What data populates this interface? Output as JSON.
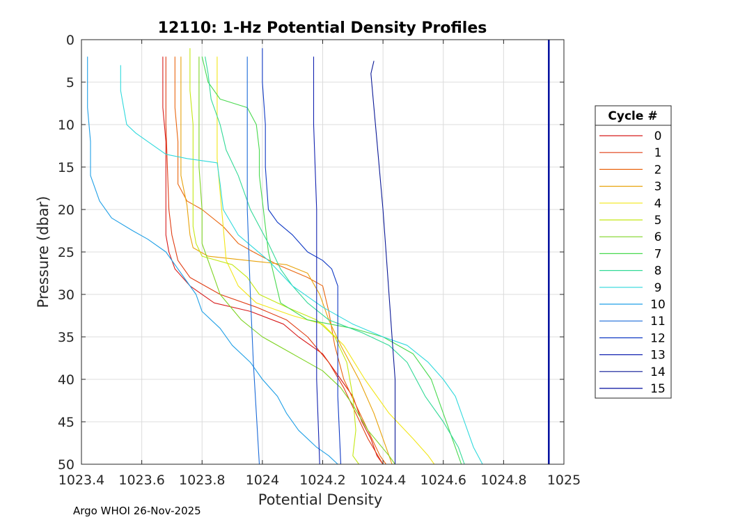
{
  "footer_text": "Argo WHOI 26-Nov-2025",
  "chart_data": {
    "type": "line",
    "title": "12110: 1-Hz Potential Density Profiles",
    "xlabel": "Potential Density",
    "ylabel": "Pressure (dbar)",
    "xlim": [
      1023.4,
      1025
    ],
    "ylim": [
      0,
      50
    ],
    "y_reversed": true,
    "grid": true,
    "xticks": [
      1023.4,
      1023.6,
      1023.8,
      1024,
      1024.2,
      1024.4,
      1024.6,
      1024.8,
      1025
    ],
    "xtick_labels": [
      "1023.4",
      "1023.6",
      "1023.8",
      "1024",
      "1024.2",
      "1024.4",
      "1024.6",
      "1024.8",
      "1025"
    ],
    "yticks": [
      0,
      5,
      10,
      15,
      20,
      25,
      30,
      35,
      40,
      45,
      50
    ],
    "ytick_labels": [
      "0",
      "5",
      "10",
      "15",
      "20",
      "25",
      "30",
      "35",
      "40",
      "45",
      "50"
    ],
    "legend": {
      "title": "Cycle #",
      "position": "right-outside"
    },
    "series": [
      {
        "name": "0",
        "color": "#d71a1a",
        "points": [
          [
            1023.67,
            2
          ],
          [
            1023.67,
            8
          ],
          [
            1023.68,
            12
          ],
          [
            1023.68,
            20
          ],
          [
            1023.68,
            23
          ],
          [
            1023.69,
            25
          ],
          [
            1023.71,
            27
          ],
          [
            1023.76,
            29
          ],
          [
            1023.84,
            31
          ],
          [
            1023.96,
            32
          ],
          [
            1024.07,
            33.5
          ],
          [
            1024.12,
            35
          ],
          [
            1024.2,
            37
          ],
          [
            1024.26,
            40
          ],
          [
            1024.3,
            42
          ],
          [
            1024.33,
            45
          ],
          [
            1024.36,
            47
          ],
          [
            1024.38,
            49
          ],
          [
            1024.4,
            50
          ]
        ]
      },
      {
        "name": "1",
        "color": "#e03c12",
        "points": [
          [
            1023.68,
            2
          ],
          [
            1023.68,
            10
          ],
          [
            1023.69,
            20
          ],
          [
            1023.7,
            23
          ],
          [
            1023.72,
            26
          ],
          [
            1023.76,
            28
          ],
          [
            1023.86,
            30
          ],
          [
            1023.98,
            31.5
          ],
          [
            1024.08,
            33
          ],
          [
            1024.15,
            35
          ],
          [
            1024.22,
            38
          ],
          [
            1024.27,
            41
          ],
          [
            1024.31,
            44
          ],
          [
            1024.35,
            47
          ],
          [
            1024.4,
            50
          ]
        ]
      },
      {
        "name": "2",
        "color": "#e9650e",
        "points": [
          [
            1023.71,
            2
          ],
          [
            1023.71,
            8
          ],
          [
            1023.72,
            12
          ],
          [
            1023.72,
            17
          ],
          [
            1023.75,
            19
          ],
          [
            1023.8,
            20
          ],
          [
            1023.87,
            22
          ],
          [
            1023.92,
            24
          ],
          [
            1023.97,
            25
          ],
          [
            1024.05,
            26.5
          ],
          [
            1024.15,
            28
          ],
          [
            1024.2,
            29
          ],
          [
            1024.22,
            32
          ],
          [
            1024.24,
            36
          ],
          [
            1024.27,
            40
          ],
          [
            1024.31,
            43
          ],
          [
            1024.35,
            46
          ],
          [
            1024.39,
            49
          ],
          [
            1024.41,
            50
          ]
        ]
      },
      {
        "name": "3",
        "color": "#e8a20a",
        "points": [
          [
            1023.73,
            2
          ],
          [
            1023.73,
            10
          ],
          [
            1023.73,
            16
          ],
          [
            1023.75,
            19.5
          ],
          [
            1023.76,
            23
          ],
          [
            1023.77,
            24.5
          ],
          [
            1023.82,
            25.5
          ],
          [
            1023.95,
            26
          ],
          [
            1024.08,
            26.5
          ],
          [
            1024.15,
            27.5
          ],
          [
            1024.19,
            30
          ],
          [
            1024.22,
            33
          ],
          [
            1024.26,
            36
          ],
          [
            1024.32,
            40
          ],
          [
            1024.37,
            44
          ],
          [
            1024.41,
            48
          ],
          [
            1024.43,
            50
          ]
        ]
      },
      {
        "name": "4",
        "color": "#f2e618",
        "points": [
          [
            1023.85,
            2
          ],
          [
            1023.85,
            8
          ],
          [
            1023.85,
            14
          ],
          [
            1023.86,
            18
          ],
          [
            1023.87,
            22
          ],
          [
            1023.88,
            26
          ],
          [
            1023.92,
            29
          ],
          [
            1023.98,
            31
          ],
          [
            1024.1,
            32.5
          ],
          [
            1024.2,
            33.5
          ],
          [
            1024.27,
            36
          ],
          [
            1024.34,
            40
          ],
          [
            1024.42,
            44
          ],
          [
            1024.5,
            47
          ],
          [
            1024.55,
            49
          ],
          [
            1024.57,
            50
          ]
        ]
      },
      {
        "name": "5",
        "color": "#c4e812",
        "points": [
          [
            1023.76,
            1
          ],
          [
            1023.76,
            6
          ],
          [
            1023.77,
            10
          ],
          [
            1023.77,
            17
          ],
          [
            1023.77,
            22
          ],
          [
            1023.78,
            24
          ],
          [
            1023.8,
            25.5
          ],
          [
            1023.9,
            26.5
          ],
          [
            1023.95,
            28
          ],
          [
            1023.99,
            30
          ],
          [
            1024.08,
            31.5
          ],
          [
            1024.18,
            33
          ],
          [
            1024.24,
            35
          ],
          [
            1024.28,
            38
          ],
          [
            1024.3,
            42
          ],
          [
            1024.31,
            46
          ],
          [
            1024.3,
            49
          ],
          [
            1024.32,
            50
          ]
        ]
      },
      {
        "name": "6",
        "color": "#7fd424",
        "points": [
          [
            1023.79,
            2
          ],
          [
            1023.79,
            8
          ],
          [
            1023.79,
            15
          ],
          [
            1023.8,
            20
          ],
          [
            1023.8,
            24
          ],
          [
            1023.82,
            26
          ],
          [
            1023.84,
            28
          ],
          [
            1023.86,
            30
          ],
          [
            1023.93,
            33
          ],
          [
            1024.0,
            35
          ],
          [
            1024.1,
            37
          ],
          [
            1024.2,
            39
          ],
          [
            1024.26,
            41
          ],
          [
            1024.3,
            43
          ],
          [
            1024.35,
            46
          ],
          [
            1024.42,
            49
          ],
          [
            1024.44,
            50
          ]
        ]
      },
      {
        "name": "7",
        "color": "#47d94d",
        "points": [
          [
            1023.8,
            2
          ],
          [
            1023.82,
            5
          ],
          [
            1023.86,
            7
          ],
          [
            1023.95,
            8
          ],
          [
            1023.98,
            10
          ],
          [
            1023.99,
            13
          ],
          [
            1023.99,
            16
          ],
          [
            1024.0,
            19
          ],
          [
            1024.01,
            22
          ],
          [
            1024.02,
            25
          ],
          [
            1024.04,
            28
          ],
          [
            1024.06,
            31
          ],
          [
            1024.15,
            33
          ],
          [
            1024.3,
            34
          ],
          [
            1024.4,
            35
          ],
          [
            1024.5,
            37
          ],
          [
            1024.56,
            40
          ],
          [
            1024.6,
            44
          ],
          [
            1024.63,
            47
          ],
          [
            1024.66,
            50
          ]
        ]
      },
      {
        "name": "8",
        "color": "#31d996",
        "points": [
          [
            1023.81,
            2
          ],
          [
            1023.82,
            4
          ],
          [
            1023.83,
            7
          ],
          [
            1023.86,
            10
          ],
          [
            1023.88,
            13
          ],
          [
            1023.92,
            16
          ],
          [
            1023.96,
            20
          ],
          [
            1024.02,
            24
          ],
          [
            1024.06,
            27
          ],
          [
            1024.1,
            29
          ],
          [
            1024.15,
            31
          ],
          [
            1024.22,
            33
          ],
          [
            1024.33,
            34.5
          ],
          [
            1024.42,
            36
          ],
          [
            1024.48,
            38
          ],
          [
            1024.54,
            42
          ],
          [
            1024.6,
            45
          ],
          [
            1024.65,
            48
          ],
          [
            1024.67,
            50
          ]
        ]
      },
      {
        "name": "9",
        "color": "#2ed9dc",
        "points": [
          [
            1023.53,
            3
          ],
          [
            1023.53,
            6
          ],
          [
            1023.54,
            8
          ],
          [
            1023.55,
            10
          ],
          [
            1023.58,
            11
          ],
          [
            1023.62,
            12
          ],
          [
            1023.68,
            13.5
          ],
          [
            1023.75,
            14
          ],
          [
            1023.85,
            14.5
          ],
          [
            1023.86,
            17
          ],
          [
            1023.87,
            20
          ],
          [
            1023.92,
            23
          ],
          [
            1024.02,
            26
          ],
          [
            1024.1,
            29
          ],
          [
            1024.2,
            31.5
          ],
          [
            1024.3,
            33.5
          ],
          [
            1024.4,
            35
          ],
          [
            1024.48,
            36
          ],
          [
            1024.55,
            38
          ],
          [
            1024.6,
            40
          ],
          [
            1024.64,
            42
          ],
          [
            1024.67,
            45
          ],
          [
            1024.7,
            48
          ],
          [
            1024.73,
            50
          ]
        ]
      },
      {
        "name": "10",
        "color": "#1f9fe6",
        "points": [
          [
            1023.42,
            2
          ],
          [
            1023.42,
            8
          ],
          [
            1023.43,
            12
          ],
          [
            1023.43,
            16
          ],
          [
            1023.46,
            19
          ],
          [
            1023.5,
            21
          ],
          [
            1023.57,
            22.5
          ],
          [
            1023.62,
            23.5
          ],
          [
            1023.68,
            25
          ],
          [
            1023.73,
            27.5
          ],
          [
            1023.78,
            30
          ],
          [
            1023.8,
            32
          ],
          [
            1023.86,
            34
          ],
          [
            1023.9,
            36
          ],
          [
            1023.96,
            38
          ],
          [
            1024.0,
            40
          ],
          [
            1024.05,
            42
          ],
          [
            1024.08,
            44
          ],
          [
            1024.12,
            46
          ],
          [
            1024.18,
            48
          ],
          [
            1024.22,
            49
          ],
          [
            1024.25,
            50
          ]
        ]
      },
      {
        "name": "11",
        "color": "#1a6ad8",
        "points": [
          [
            1023.95,
            2
          ],
          [
            1023.95,
            10
          ],
          [
            1023.95,
            20
          ],
          [
            1023.96,
            30
          ],
          [
            1023.97,
            38
          ],
          [
            1023.98,
            44
          ],
          [
            1023.99,
            50
          ]
        ]
      },
      {
        "name": "12",
        "color": "#0e38c4",
        "points": [
          [
            1024.0,
            1
          ],
          [
            1024.0,
            5
          ],
          [
            1024.01,
            10
          ],
          [
            1024.01,
            15
          ],
          [
            1024.02,
            20
          ],
          [
            1024.05,
            21.5
          ],
          [
            1024.1,
            23
          ],
          [
            1024.15,
            25
          ],
          [
            1024.2,
            26
          ],
          [
            1024.23,
            27
          ],
          [
            1024.25,
            29
          ],
          [
            1024.25,
            35
          ],
          [
            1024.25,
            42
          ],
          [
            1024.26,
            50
          ]
        ]
      },
      {
        "name": "13",
        "color": "#1222b0",
        "points": [
          [
            1024.17,
            2
          ],
          [
            1024.17,
            10
          ],
          [
            1024.18,
            20
          ],
          [
            1024.18,
            30
          ],
          [
            1024.18,
            40
          ],
          [
            1024.19,
            50
          ]
        ]
      },
      {
        "name": "14",
        "color": "#0a1896",
        "points": [
          [
            1024.37,
            2.5
          ],
          [
            1024.36,
            4
          ],
          [
            1024.37,
            8
          ],
          [
            1024.38,
            12
          ],
          [
            1024.39,
            16
          ],
          [
            1024.4,
            20
          ],
          [
            1024.41,
            25
          ],
          [
            1024.42,
            30
          ],
          [
            1024.43,
            35
          ],
          [
            1024.44,
            40
          ],
          [
            1024.44,
            45
          ],
          [
            1024.44,
            50
          ]
        ]
      },
      {
        "name": "15",
        "color": "#000c9e",
        "width": 2.5,
        "points": [
          [
            1024.95,
            0
          ],
          [
            1024.95,
            5
          ],
          [
            1024.95,
            10
          ],
          [
            1024.95,
            15
          ],
          [
            1024.95,
            20
          ],
          [
            1024.95,
            25
          ],
          [
            1024.95,
            30
          ],
          [
            1024.95,
            35
          ],
          [
            1024.95,
            40
          ],
          [
            1024.95,
            45
          ],
          [
            1024.95,
            50
          ]
        ]
      }
    ]
  }
}
